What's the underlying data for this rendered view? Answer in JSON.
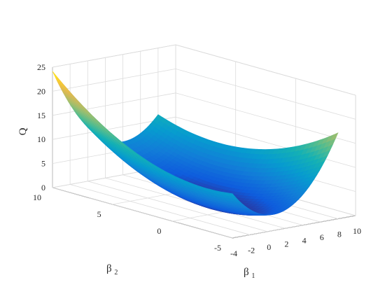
{
  "chart_data": {
    "type": "surface",
    "title": "",
    "zlabel": "Q",
    "xlabel": {
      "symbol": "β",
      "sub": "1"
    },
    "ylabel": {
      "symbol": "β",
      "sub": "2"
    },
    "xlim": [
      -4,
      10
    ],
    "ylim": [
      -5,
      10
    ],
    "zlim": [
      0,
      25
    ],
    "xticks": [
      -4,
      -2,
      0,
      2,
      4,
      6,
      8,
      10
    ],
    "yticks": [
      -5,
      0,
      5,
      10
    ],
    "zticks": [
      0,
      5,
      10,
      15,
      20,
      25
    ],
    "grid": true,
    "box": true,
    "colormap": "parula",
    "surface": {
      "function": "Q(β1,β2) quadratic bowl",
      "minimum": {
        "x": 2,
        "y": 1,
        "z": 0.5
      },
      "corner_values": [
        {
          "x": -4,
          "y": 10,
          "z": 24.2
        },
        {
          "x": 8,
          "y": 10,
          "z": 12.7
        },
        {
          "x": -4,
          "y": -5,
          "z": 14.5
        },
        {
          "x": 8,
          "y": -5,
          "z": 11.6
        }
      ]
    }
  }
}
